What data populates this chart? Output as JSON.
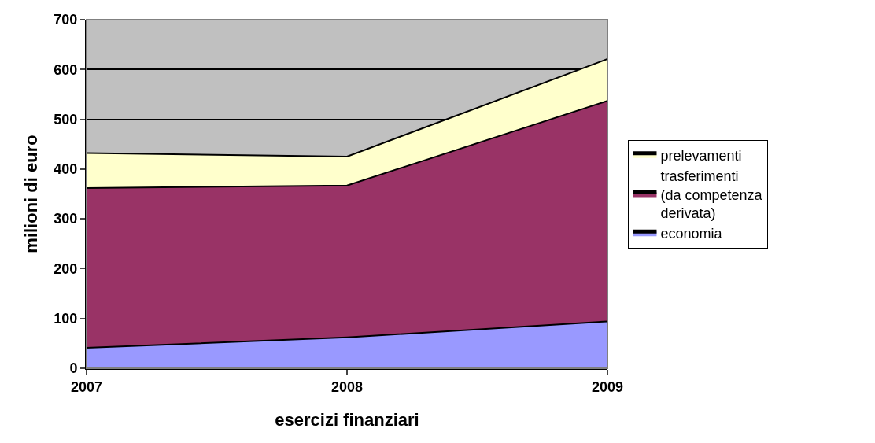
{
  "chart_data": {
    "type": "area",
    "stacked": true,
    "xlabel": "esercizi finanziari",
    "ylabel": "milioni di euro",
    "categories": [
      "2007",
      "2008",
      "2009"
    ],
    "series": [
      {
        "name": "economia",
        "color": "#9999ff",
        "values": [
          41,
          62,
          94
        ]
      },
      {
        "name": "trasferimenti (da competenza derivata)",
        "color": "#993366",
        "values": [
          321,
          305,
          443
        ]
      },
      {
        "name": "prelevamenti",
        "color": "#ffffcc",
        "values": [
          70,
          58,
          84
        ]
      }
    ],
    "ylim": [
      0,
      700
    ],
    "yticks": [
      0,
      100,
      200,
      300,
      400,
      500,
      600,
      700
    ],
    "grid": "y",
    "legend": "right"
  }
}
